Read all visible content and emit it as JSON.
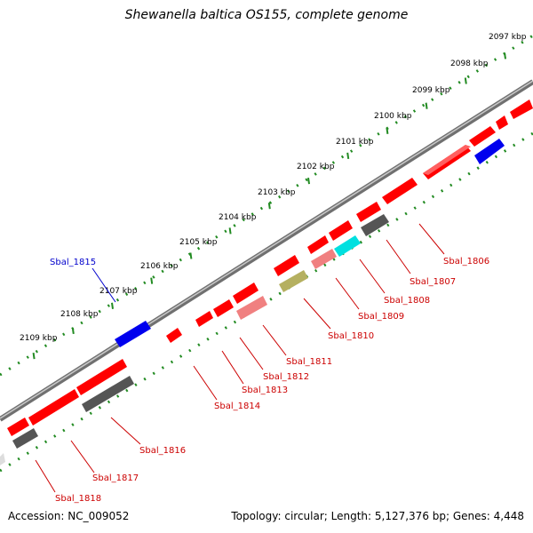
{
  "header": {
    "title": "Shewanella baltica OS155, complete genome"
  },
  "footer": {
    "accession": "Accession: NC_009052",
    "summary": "Topology: circular; Length: 5,127,376 bp; Genes: 4,448"
  },
  "colors": {
    "backbone": "#808080",
    "gc_dots": "#228b22",
    "forward_gene": "#ff0000",
    "label_default": "#cc0000",
    "label_highlight": "#0000cc"
  },
  "scale_labels": [
    {
      "text": "2097 kbp"
    },
    {
      "text": "2098 kbp"
    },
    {
      "text": "2099 kbp"
    },
    {
      "text": "2100 kbp"
    },
    {
      "text": "2101 kbp"
    },
    {
      "text": "2102 kbp"
    },
    {
      "text": "2103 kbp"
    },
    {
      "text": "2104 kbp"
    },
    {
      "text": "2105 kbp"
    },
    {
      "text": "2106 kbp"
    },
    {
      "text": "2107 kbp"
    },
    {
      "text": "2108 kbp"
    },
    {
      "text": "2109 kbp"
    }
  ],
  "gene_labels": [
    {
      "text": "Sbal_1806",
      "color": "#cc0000"
    },
    {
      "text": "Sbal_1807",
      "color": "#cc0000"
    },
    {
      "text": "Sbal_1808",
      "color": "#cc0000"
    },
    {
      "text": "Sbal_1809",
      "color": "#cc0000"
    },
    {
      "text": "Sbal_1810",
      "color": "#cc0000"
    },
    {
      "text": "Sbal_1811",
      "color": "#cc0000"
    },
    {
      "text": "Sbal_1812",
      "color": "#cc0000"
    },
    {
      "text": "Sbal_1813",
      "color": "#cc0000"
    },
    {
      "text": "Sbal_1814",
      "color": "#cc0000"
    },
    {
      "text": "Sbal_1815",
      "color": "#0000cc"
    },
    {
      "text": "Sbal_1816",
      "color": "#cc0000"
    },
    {
      "text": "Sbal_1817",
      "color": "#cc0000"
    },
    {
      "text": "Sbal_1818",
      "color": "#cc0000"
    }
  ]
}
